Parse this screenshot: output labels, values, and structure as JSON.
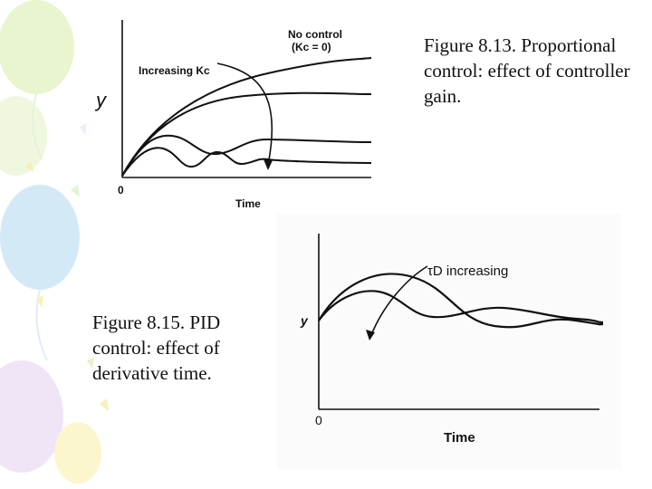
{
  "slide": {
    "background_color": "#ffffff",
    "balloon_colors": [
      "#e6f5c9",
      "#cfe8f6",
      "#efe2f7",
      "#fbf6c8"
    ]
  },
  "figure_8_13": {
    "caption": "Figure 8.13. Proportional control: effect of controller gain.",
    "y_label": "y",
    "x_label": "Time",
    "origin_label": "0",
    "annotation_no_control_line1": "No control",
    "annotation_no_control_line2": "(Kc = 0)",
    "annotation_increasing": "Increasing Kc",
    "curves": [
      "no-control",
      "low-gain",
      "medium-gain",
      "high-gain-oscillatory"
    ]
  },
  "figure_8_15": {
    "caption": "Figure 8.15. PID control: effect of derivative time.",
    "y_label": "y",
    "x_label": "Time",
    "origin_label": "0",
    "annotation": "τD increasing",
    "curves": [
      "low-derivative-time",
      "high-derivative-time"
    ]
  }
}
